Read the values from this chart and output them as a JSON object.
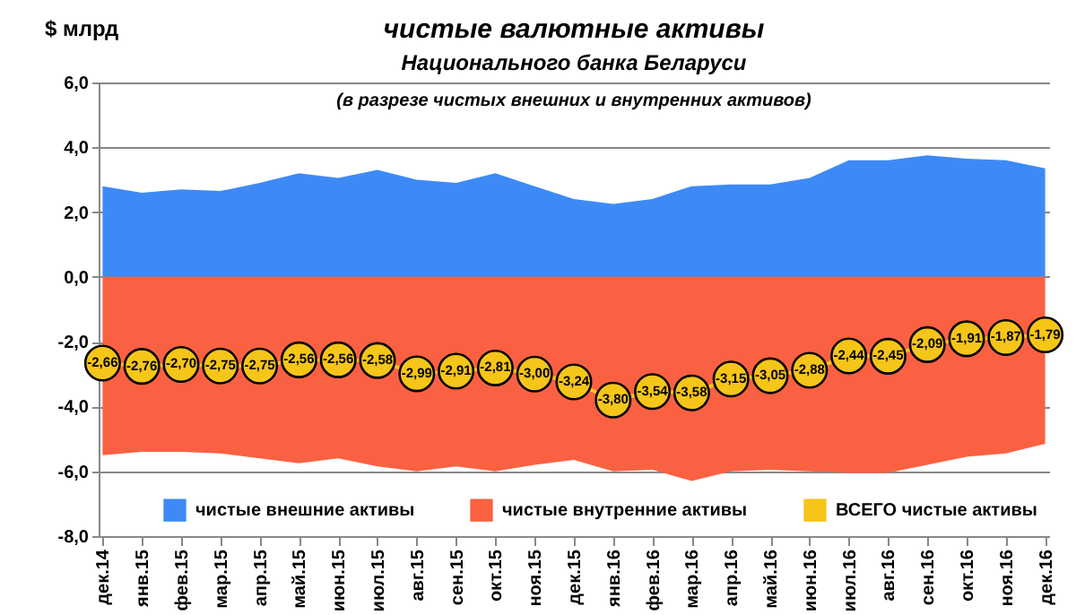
{
  "chart_data": {
    "type": "area",
    "title": "чистые валютные активы",
    "subtitle": "Национального  банка Беларуси",
    "ylabel": "$ млрд",
    "annotations": [
      "(в разрезе чистых  внешних  и внутренних  активов)"
    ],
    "categories": [
      "дек.14",
      "янв.15",
      "фев.15",
      "мар.15",
      "апр.15",
      "май.15",
      "июн.15",
      "июл.15",
      "авг.15",
      "сен.15",
      "окт.15",
      "ноя.15",
      "дек.15",
      "янв.16",
      "фев.16",
      "мар.16",
      "апр.16",
      "май.16",
      "июн.16",
      "июл.16",
      "авг.16",
      "сен.16",
      "окт.16",
      "ноя.16",
      "дек.16"
    ],
    "series": [
      {
        "name": "чистые  внешние  активы",
        "color": "#3d8af7",
        "values": [
          2.8,
          2.6,
          2.7,
          2.65,
          2.9,
          3.2,
          3.05,
          3.3,
          3.0,
          2.9,
          3.2,
          2.8,
          2.4,
          2.25,
          2.4,
          2.8,
          2.85,
          2.85,
          3.05,
          3.6,
          3.6,
          3.75,
          3.65,
          3.6,
          3.35
        ]
      },
      {
        "name": "чистые  внутренние  активы",
        "color": "#fa6142",
        "values": [
          -5.5,
          -5.4,
          -5.4,
          -5.45,
          -5.6,
          -5.75,
          -5.6,
          -5.85,
          -6.0,
          -5.85,
          -6.0,
          -5.8,
          -5.65,
          -6.0,
          -5.95,
          -6.3,
          -6.0,
          -5.95,
          -6.0,
          -6.05,
          -6.05,
          -5.8,
          -5.55,
          -5.45,
          -5.15
        ]
      },
      {
        "name": "ВСЕГО чистые  активы",
        "type": "line",
        "color": "#f5c518",
        "marker": "circle",
        "values": [
          -2.66,
          -2.76,
          -2.7,
          -2.75,
          -2.75,
          -2.56,
          -2.56,
          -2.58,
          -2.99,
          -2.91,
          -2.81,
          -3.0,
          -3.24,
          -3.8,
          -3.54,
          -3.58,
          -3.15,
          -3.05,
          -2.88,
          -2.44,
          -2.45,
          -2.09,
          -1.91,
          -1.87,
          -1.79
        ],
        "value_labels": [
          "-2,66",
          "-2,76",
          "-2,70",
          "-2,75",
          "-2,75",
          "-2,56",
          "-2,56",
          "-2,58",
          "-2,99",
          "-2,91",
          "-2,81",
          "-3,00",
          "-3,24",
          "-3,80",
          "-3,54",
          "-3,58",
          "-3,15",
          "-3,05",
          "-2,88",
          "-2,44",
          "-2,45",
          "-2,09",
          "-1,91",
          "-1,87",
          "-1,79"
        ]
      }
    ],
    "ylim": [
      -8,
      6
    ],
    "yticks": [
      {
        "value": -8,
        "label": "-8,0"
      },
      {
        "value": -6,
        "label": "-6,0"
      },
      {
        "value": -4,
        "label": "-4,0"
      },
      {
        "value": -2,
        "label": "-2,0"
      },
      {
        "value": 0,
        "label": "0,0"
      },
      {
        "value": 2,
        "label": "2,0"
      },
      {
        "value": 4,
        "label": "4,0"
      },
      {
        "value": 6,
        "label": "6,0"
      }
    ],
    "grid": "y",
    "legend": "bottom"
  }
}
